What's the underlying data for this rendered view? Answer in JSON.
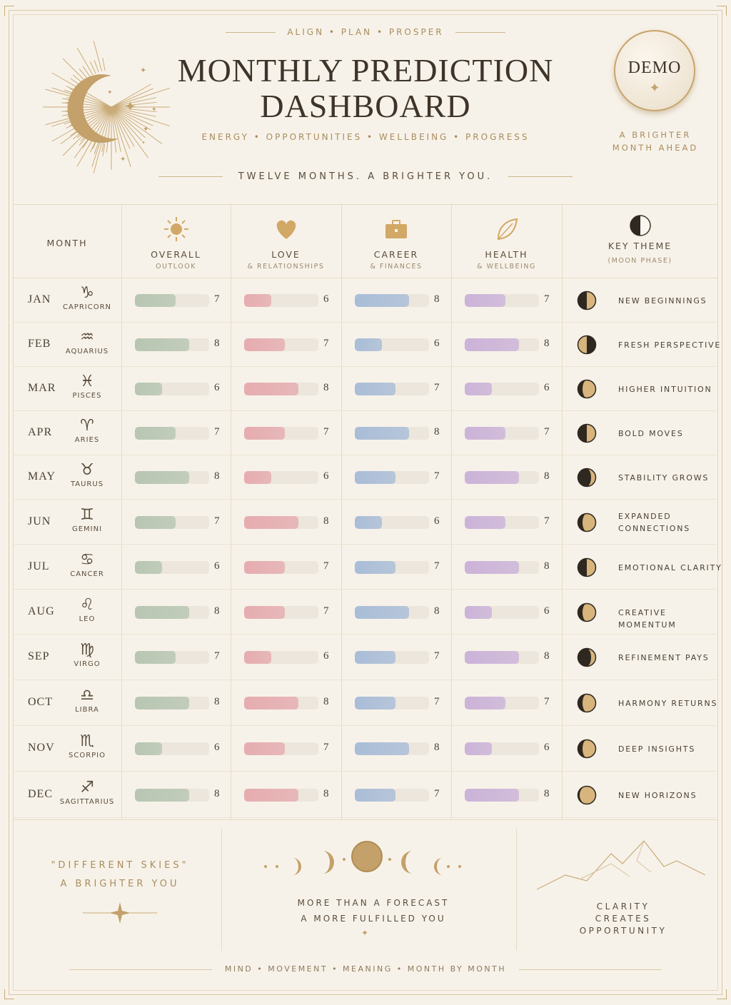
{
  "header": {
    "tagline": "ALIGN • PLAN • PROSPER",
    "title_line1": "MONTHLY PREDICTION",
    "title_line2": "DASHBOARD",
    "subtitle": "ENERGY • OPPORTUNITIES • WELLBEING • PROGRESS",
    "hero": "TWELVE MONTHS. A BRIGHTER YOU.",
    "badge": "DEMO",
    "badge_caption_line1": "A BRIGHTER",
    "badge_caption_line2": "MONTH AHEAD"
  },
  "columns": {
    "month": "MONTH",
    "overall": {
      "label": "OVERALL",
      "sub": "OUTLOOK",
      "icon": "sun-icon"
    },
    "love": {
      "label": "LOVE",
      "sub": "& RELATIONSHIPS",
      "icon": "heart-icon"
    },
    "career": {
      "label": "CAREER",
      "sub": "& FINANCES",
      "icon": "briefcase-icon"
    },
    "health": {
      "label": "HEALTH",
      "sub": "& WELLBEING",
      "icon": "leaf-icon"
    },
    "theme": {
      "label": "KEY THEME",
      "sub": "(MOON PHASE)",
      "icon": "moon-phase-icon"
    }
  },
  "colors": {
    "overall": "#b7c6b2",
    "love": "#e6acb0",
    "career": "#a9bdd8",
    "health": "#cbb3d9",
    "gold": "#c2a16a"
  },
  "scale_max": 10,
  "rows": [
    {
      "month": "JAN",
      "glyph": "♑",
      "sign": "CAPRICORN",
      "overall": 7,
      "love": 6,
      "career": 8,
      "health": 7,
      "theme": "NEW BEGINNINGS",
      "phase": "first-quarter"
    },
    {
      "month": "FEB",
      "glyph": "♒",
      "sign": "AQUARIUS",
      "overall": 8,
      "love": 7,
      "career": 6,
      "health": 8,
      "theme": "FRESH PERSPECTIVE",
      "phase": "last-quarter"
    },
    {
      "month": "MAR",
      "glyph": "♓",
      "sign": "PISCES",
      "overall": 6,
      "love": 8,
      "career": 7,
      "health": 6,
      "theme": "HIGHER INTUITION",
      "phase": "waxing-gibbous"
    },
    {
      "month": "APR",
      "glyph": "♈",
      "sign": "ARIES",
      "overall": 7,
      "love": 7,
      "career": 8,
      "health": 7,
      "theme": "BOLD MOVES",
      "phase": "first-quarter"
    },
    {
      "month": "MAY",
      "glyph": "♉",
      "sign": "TAURUS",
      "overall": 8,
      "love": 6,
      "career": 7,
      "health": 8,
      "theme": "STABILITY GROWS",
      "phase": "waning-crescent"
    },
    {
      "month": "JUN",
      "glyph": "♊",
      "sign": "GEMINI",
      "overall": 7,
      "love": 8,
      "career": 6,
      "health": 7,
      "theme": "EXPANDED CONNECTIONS",
      "phase": "waxing-gibbous"
    },
    {
      "month": "JUL",
      "glyph": "♋",
      "sign": "CANCER",
      "overall": 6,
      "love": 7,
      "career": 7,
      "health": 8,
      "theme": "EMOTIONAL CLARITY",
      "phase": "first-quarter"
    },
    {
      "month": "AUG",
      "glyph": "♌",
      "sign": "LEO",
      "overall": 8,
      "love": 7,
      "career": 8,
      "health": 6,
      "theme": "CREATIVE MOMENTUM",
      "phase": "waxing-gibbous"
    },
    {
      "month": "SEP",
      "glyph": "♍",
      "sign": "VIRGO",
      "overall": 7,
      "love": 6,
      "career": 7,
      "health": 8,
      "theme": "REFINEMENT PAYS",
      "phase": "waning-crescent"
    },
    {
      "month": "OCT",
      "glyph": "♎",
      "sign": "LIBRA",
      "overall": 8,
      "love": 8,
      "career": 7,
      "health": 7,
      "theme": "HARMONY RETURNS",
      "phase": "waxing-gibbous"
    },
    {
      "month": "NOV",
      "glyph": "♏",
      "sign": "SCORPIO",
      "overall": 6,
      "love": 7,
      "career": 8,
      "health": 6,
      "theme": "DEEP INSIGHTS",
      "phase": "waxing-gibbous"
    },
    {
      "month": "DEC",
      "glyph": "♐",
      "sign": "SAGITTARIUS",
      "overall": 8,
      "love": 8,
      "career": 7,
      "health": 8,
      "theme": "NEW HORIZONS",
      "phase": "full"
    }
  ],
  "footer": {
    "quote_line1": "\"DIFFERENT SKIES\"",
    "quote_line2": "A BRIGHTER YOU",
    "mid_line1": "MORE THAN A FORECAST",
    "mid_line2": "A MORE FULFILLED YOU",
    "right_line1": "CLARITY",
    "right_line2": "CREATES",
    "right_line3": "OPPORTUNITY",
    "bottom": "MIND • MOVEMENT • MEANING • MONTH BY MONTH"
  }
}
